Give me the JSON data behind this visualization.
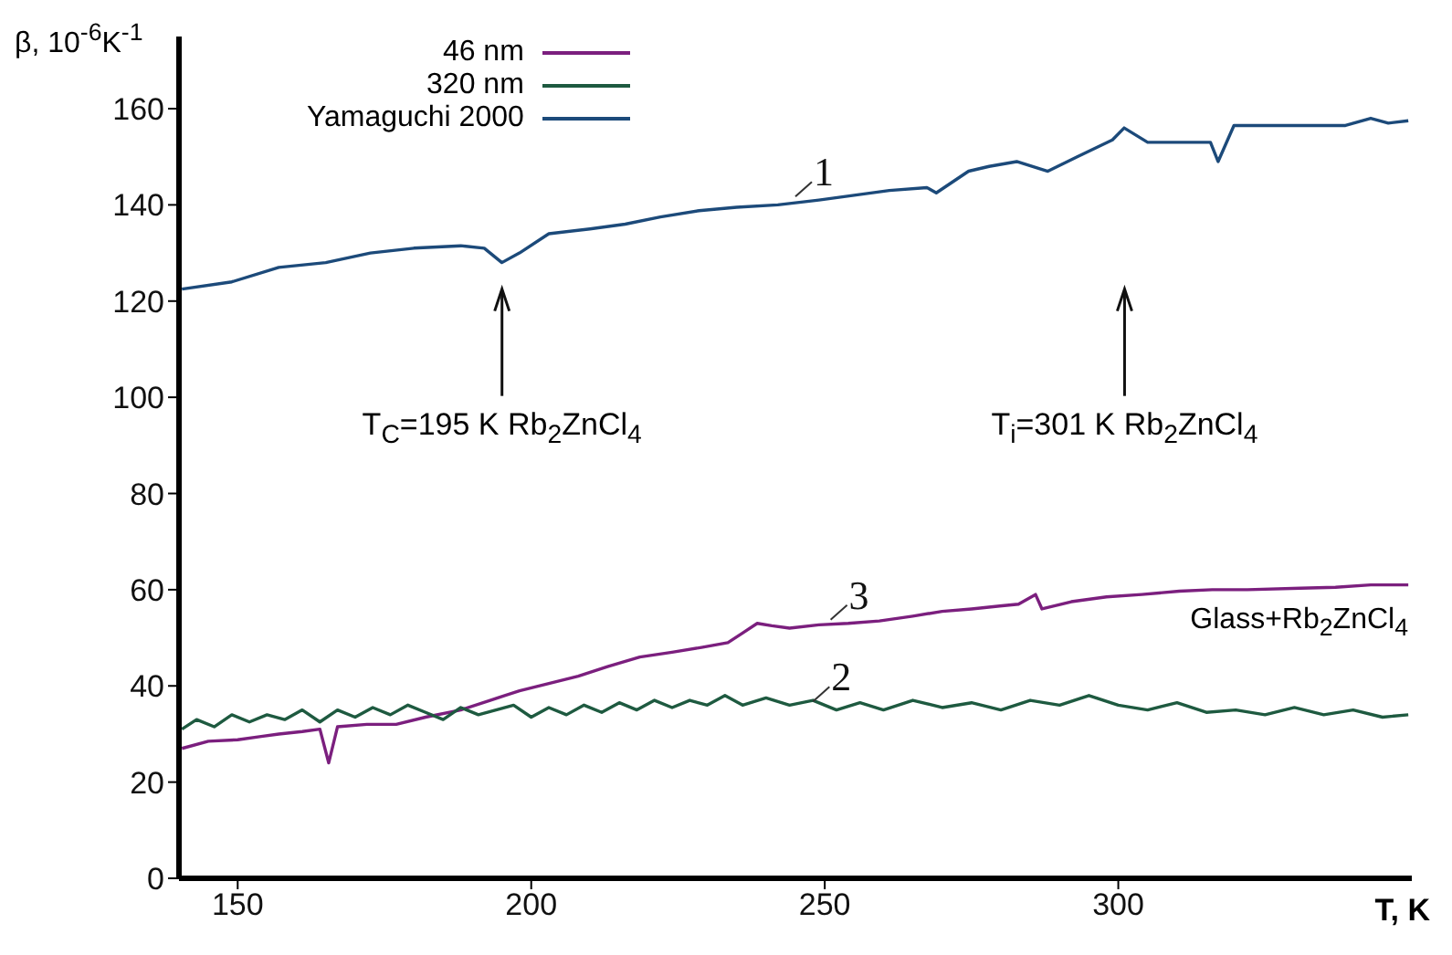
{
  "chart_data": {
    "type": "line",
    "xlabel": "T, K",
    "ylabel": "β, 10$^{-6}$K$^{-1}$",
    "xlim": [
      140,
      350
    ],
    "ylim": [
      0,
      175
    ],
    "xticks": [
      150,
      200,
      250,
      300
    ],
    "yticks": [
      0,
      20,
      40,
      60,
      80,
      100,
      120,
      140,
      160
    ],
    "grid": false,
    "legend": "top left",
    "marker": "none",
    "line_style": "solid",
    "series": [
      {
        "name": "46 nm",
        "color": "#7b1f7e",
        "x": [
          140.5,
          145,
          150,
          154,
          157,
          161,
          164,
          165.5,
          167,
          172,
          177,
          182,
          188,
          193,
          198,
          203,
          208,
          213,
          218.5,
          224,
          229,
          233.5,
          236,
          238.5,
          241,
          244,
          249,
          254,
          259.3,
          265,
          270,
          275,
          279.8,
          283,
          285.9,
          287,
          292,
          298,
          304,
          310.4,
          316,
          322,
          331,
          337,
          343,
          349.4
        ],
        "values": [
          27,
          28.5,
          28.8,
          29.5,
          30,
          30.5,
          31,
          24,
          31.5,
          32,
          32,
          33.5,
          35,
          37,
          39,
          40.5,
          42,
          44,
          46,
          47,
          48,
          49,
          51,
          53,
          52.5,
          52,
          52.7,
          53,
          53.5,
          54.5,
          55.5,
          56,
          56.6,
          57,
          59,
          56,
          57.5,
          58.5,
          59,
          59.7,
          60,
          60,
          60.3,
          60.5,
          61,
          61
        ]
      },
      {
        "name": "320 nm",
        "color": "#1e5a40",
        "x": [
          140.5,
          143,
          146,
          149,
          152,
          155,
          158,
          161,
          164,
          167,
          170,
          173,
          176,
          179,
          182,
          185,
          188,
          191,
          194,
          197,
          200,
          203,
          206,
          209,
          212,
          215,
          218,
          221,
          224,
          227,
          230,
          233,
          236,
          240,
          244,
          248,
          252,
          256,
          260,
          265,
          270,
          275,
          280,
          285,
          290,
          295,
          300,
          305,
          310,
          315,
          320,
          325,
          330,
          335,
          340,
          345,
          349.4
        ],
        "values": [
          31,
          33,
          31.5,
          34,
          32.5,
          34,
          33,
          35,
          32.5,
          35,
          33.5,
          35.5,
          34,
          36,
          34.5,
          33,
          35.5,
          34,
          35,
          36,
          33.5,
          35.5,
          34,
          36,
          34.5,
          36.5,
          35,
          37,
          35.5,
          37,
          36,
          38,
          36,
          37.5,
          36,
          37,
          35,
          36.5,
          35,
          37,
          35.5,
          36.5,
          35,
          37,
          36,
          38,
          36,
          35,
          36.5,
          34.5,
          35,
          34,
          35.5,
          34,
          35,
          33.5,
          34
        ]
      },
      {
        "name": "Yamaguchi 2000",
        "color": "#1c4a7a",
        "x": [
          140.5,
          149,
          157,
          165,
          172.6,
          180,
          188,
          192,
          195,
          198,
          203,
          210,
          216,
          222,
          228.6,
          235,
          242,
          249,
          255,
          261,
          267.4,
          269,
          274.5,
          278,
          282.7,
          288,
          293,
          299,
          301,
          305,
          315.7,
          317,
          319.7,
          330,
          338.7,
          343,
          346,
          349.4
        ],
        "values": [
          122.5,
          124,
          127,
          128,
          130,
          131,
          131.5,
          131,
          128,
          130,
          134,
          135,
          136,
          137.5,
          138.8,
          139.5,
          140,
          141,
          142,
          143,
          143.6,
          142.5,
          147,
          148,
          149,
          147,
          150,
          153.5,
          156,
          153,
          153,
          149,
          156.5,
          156.5,
          156.5,
          158,
          157,
          157.5
        ]
      }
    ],
    "annotations": [
      "T$_{C}$=195 K Rb$_{2}$ZnCl$_{4}$",
      "T$_{i}$=301 K Rb$_{2}$ZnCl$_{4}$",
      {
        "text": "1",
        "x": 245,
        "y": 141
      },
      {
        "text": "3",
        "x": 251,
        "y": 53
      },
      {
        "text": "2",
        "x": 248,
        "y": 36
      },
      "Glass+Rb$_{2}$ZnCl$_{4}$"
    ]
  }
}
